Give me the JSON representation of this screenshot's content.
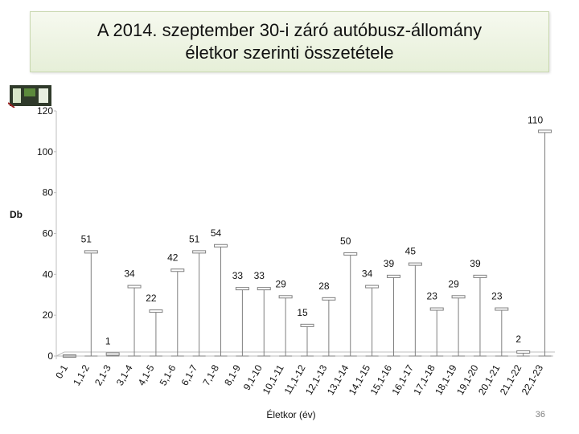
{
  "title_lines": [
    "A 2014. szeptember 30-i záró autóbusz-állomány",
    "életkor szerinti összetétele"
  ],
  "slide_number": "36",
  "logo_icon": "bus-company-logo-icon",
  "colors": {
    "axis": "#bfbfbf",
    "marker": "#7f7f7f",
    "title_bg": "#e6efd8",
    "text": "#111111"
  },
  "chart_data": {
    "type": "bar",
    "xlabel": "Életkor (év)",
    "ylabel": "Db",
    "ylim": [
      0,
      120
    ],
    "yticks": [
      0,
      20,
      40,
      60,
      80,
      100,
      120
    ],
    "grid": false,
    "legend": "none",
    "categories": [
      "0-1",
      "1,1-2",
      "2,1-3",
      "3,1-4",
      "4,1-5",
      "5,1-6",
      "6,1-7",
      "7,1-8",
      "8,1-9",
      "9,1-10",
      "10,1-11",
      "11,1-12",
      "12,1-13",
      "13,1-14",
      "14,1-15",
      "15,1-16",
      "16,1-17",
      "17,1-18",
      "18,1-19",
      "19,1-20",
      "20,1-21",
      "21,1-22",
      "22,1-23"
    ],
    "values": [
      0,
      51,
      1,
      34,
      22,
      42,
      51,
      54,
      33,
      33,
      29,
      15,
      28,
      50,
      34,
      39,
      45,
      23,
      29,
      39,
      23,
      2,
      110
    ],
    "data_labels": [
      "",
      "51",
      "1",
      "34",
      "22",
      "42",
      "51",
      "54",
      "33",
      "33",
      "29",
      "15",
      "28",
      "50",
      "34",
      "39",
      "45",
      "23",
      "29",
      "39",
      "23",
      "2",
      "110"
    ]
  }
}
